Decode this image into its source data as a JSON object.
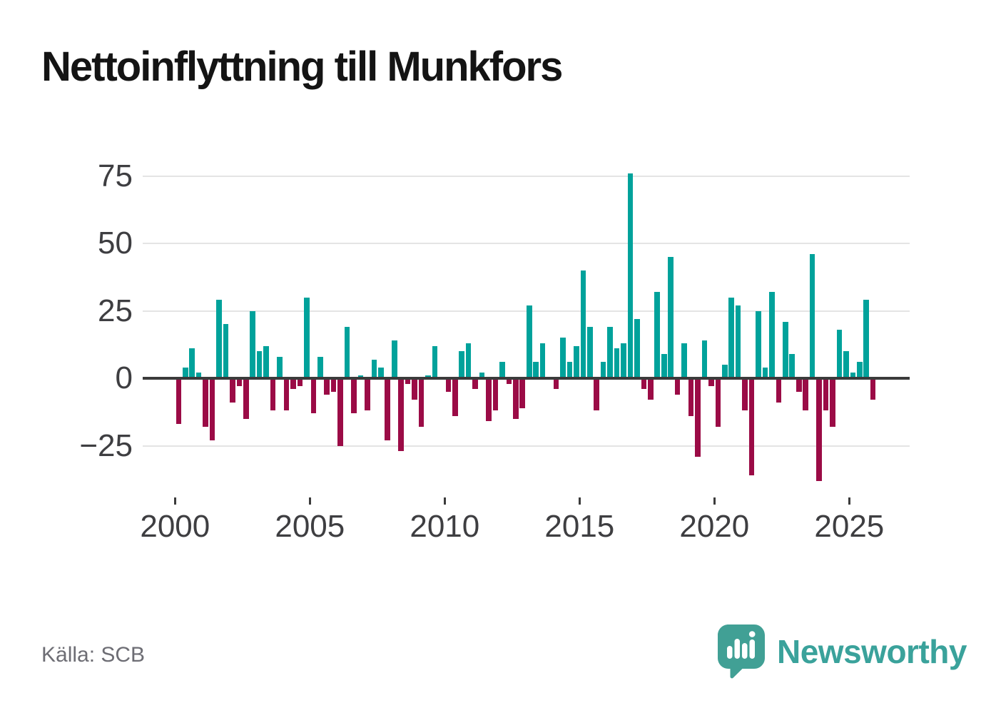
{
  "page": {
    "title": "Nettoinflyttning till Munkfors",
    "source": "Källa: SCB"
  },
  "logo": {
    "wordmark": "Newsworthy",
    "icon": "speech-bubble-bar-chart-icon",
    "icon_color": "#41a095",
    "wordmark_color": "#3aa29b"
  },
  "chart_data": {
    "type": "bar",
    "title": "Nettoinflyttning till Munkfors",
    "xlabel": "",
    "ylabel": "",
    "ylim": [
      -40,
      80
    ],
    "grid": "horizontal",
    "y_ticks": [
      {
        "value": 75,
        "label": "75"
      },
      {
        "value": 50,
        "label": "50"
      },
      {
        "value": 25,
        "label": "25"
      },
      {
        "value": 0,
        "label": "0"
      },
      {
        "value": -25,
        "label": "−25"
      }
    ],
    "x_ticks": [
      {
        "value": 2000,
        "label": "2000"
      },
      {
        "value": 2005,
        "label": "2005"
      },
      {
        "value": 2010,
        "label": "2010"
      },
      {
        "value": 2015,
        "label": "2015"
      },
      {
        "value": 2020,
        "label": "2020"
      },
      {
        "value": 2025,
        "label": "2025"
      }
    ],
    "colors": {
      "positive": "#00a29b",
      "negative": "#9b0b46"
    },
    "categories": [
      "2000 Q1",
      "2000 Q2",
      "2000 Q3",
      "2000 Q4",
      "2001 Q1",
      "2001 Q2",
      "2001 Q3",
      "2001 Q4",
      "2002 Q1",
      "2002 Q2",
      "2002 Q3",
      "2002 Q4",
      "2003 Q1",
      "2003 Q2",
      "2003 Q3",
      "2003 Q4",
      "2004 Q1",
      "2004 Q2",
      "2004 Q3",
      "2004 Q4",
      "2005 Q1",
      "2005 Q2",
      "2005 Q3",
      "2005 Q4",
      "2006 Q1",
      "2006 Q2",
      "2006 Q3",
      "2006 Q4",
      "2007 Q1",
      "2007 Q2",
      "2007 Q3",
      "2007 Q4",
      "2008 Q1",
      "2008 Q2",
      "2008 Q3",
      "2008 Q4",
      "2009 Q1",
      "2009 Q2",
      "2009 Q3",
      "2009 Q4",
      "2010 Q1",
      "2010 Q2",
      "2010 Q3",
      "2010 Q4",
      "2011 Q1",
      "2011 Q2",
      "2011 Q3",
      "2011 Q4",
      "2012 Q1",
      "2012 Q2",
      "2012 Q3",
      "2012 Q4",
      "2013 Q1",
      "2013 Q2",
      "2013 Q3",
      "2013 Q4",
      "2014 Q1",
      "2014 Q2",
      "2014 Q3",
      "2014 Q4",
      "2015 Q1",
      "2015 Q2",
      "2015 Q3",
      "2015 Q4",
      "2016 Q1",
      "2016 Q2",
      "2016 Q3",
      "2016 Q4",
      "2017 Q1",
      "2017 Q2",
      "2017 Q3",
      "2017 Q4",
      "2018 Q1",
      "2018 Q2",
      "2018 Q3",
      "2018 Q4",
      "2019 Q1",
      "2019 Q2",
      "2019 Q3",
      "2019 Q4",
      "2020 Q1",
      "2020 Q2",
      "2020 Q3",
      "2020 Q4",
      "2021 Q1",
      "2021 Q2",
      "2021 Q3",
      "2021 Q4",
      "2022 Q1",
      "2022 Q2",
      "2022 Q3",
      "2022 Q4",
      "2023 Q1",
      "2023 Q2",
      "2023 Q3",
      "2023 Q4",
      "2024 Q1",
      "2024 Q2",
      "2024 Q3",
      "2024 Q4",
      "2025 Q1",
      "2025 Q2",
      "2025 Q3",
      "2025 Q4"
    ],
    "values": [
      -17,
      4,
      11,
      2,
      -18,
      -23,
      29,
      20,
      -9,
      -3,
      -15,
      25,
      10,
      12,
      -12,
      8,
      -12,
      -4,
      -3,
      30,
      -13,
      8,
      -6,
      -5,
      -25,
      19,
      -13,
      1,
      -12,
      7,
      4,
      -23,
      14,
      -27,
      -2,
      -8,
      -18,
      1,
      12,
      0,
      -5,
      -14,
      10,
      13,
      -4,
      2,
      -16,
      -12,
      6,
      -2,
      -15,
      -11,
      27,
      6,
      13,
      0,
      -4,
      15,
      6,
      12,
      40,
      19,
      -12,
      6,
      19,
      11,
      13,
      76,
      22,
      -4,
      -8,
      32,
      9,
      45,
      -6,
      13,
      -14,
      -29,
      14,
      -3,
      -18,
      5,
      30,
      27,
      -12,
      -36,
      25,
      4,
      32,
      -9,
      21,
      9,
      -5,
      -12,
      46,
      -38,
      -12,
      -18,
      18,
      10,
      2,
      6,
      29,
      -8
    ]
  }
}
